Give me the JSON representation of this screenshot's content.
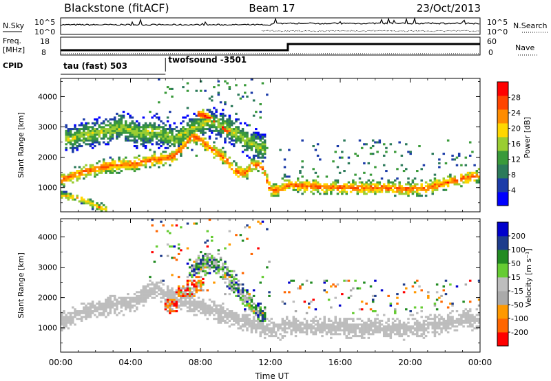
{
  "header": {
    "station": "Blackstone (fitACF)",
    "beam": "Beam 17",
    "date": "23/Oct/2013"
  },
  "summary_panels": {
    "nsky": {
      "label": "N.Sky",
      "right_label": "N.Search",
      "ticks_left": [
        "10^5",
        "10^0"
      ],
      "ticks_right": [
        "10^5",
        "10^0"
      ]
    },
    "freq": {
      "label_line1": "Freq.",
      "label_line2": "[MHz]",
      "ticks_left": [
        "18",
        "8"
      ],
      "right_label": "Nave",
      "ticks_right": [
        "60",
        "0"
      ]
    },
    "cpid": {
      "label": "CPID",
      "segments": [
        {
          "name": "tau (fast) 503",
          "start_hour": 0
        },
        {
          "name": "twofsound -3501",
          "start_hour": 6
        }
      ]
    }
  },
  "x_axis": {
    "label": "Time UT",
    "ticks": [
      "00:00",
      "04:00",
      "08:00",
      "12:00",
      "16:00",
      "20:00",
      "00:00"
    ],
    "range_hours": [
      0,
      24
    ]
  },
  "chart_data": [
    {
      "type": "heatmap",
      "quantity": "Power",
      "colorbar_label": "Power [dB]",
      "colorbar_ticks": [
        "28",
        "24",
        "20",
        "16",
        "12",
        "8",
        "4"
      ],
      "colorbar_range": [
        0,
        32
      ],
      "ylabel": "Slant Range [km]",
      "yticks": [
        "4000",
        "3000",
        "2000",
        "1000"
      ],
      "ylim": [
        200,
        4600
      ],
      "xlim": [
        0,
        24
      ],
      "colors": [
        "#0000ff",
        "#1c3ca8",
        "#2c7a5a",
        "#3a9a3a",
        "#9acd32",
        "#ffd700",
        "#ff8c00",
        "#ff4500",
        "#ff0000"
      ],
      "features": [
        {
          "name": "main band",
          "x": [
            0,
            1.5,
            3,
            4,
            5,
            6,
            6.5,
            7,
            7.5,
            8,
            8.5,
            9,
            9.5,
            10,
            10.5,
            11,
            11.5,
            12,
            12.5,
            13,
            14,
            16,
            18,
            20,
            21,
            22,
            23,
            24
          ],
          "y": [
            1250,
            1550,
            1750,
            1750,
            1900,
            1950,
            2050,
            2350,
            2700,
            2600,
            2300,
            2150,
            1900,
            1550,
            1450,
            1750,
            1700,
            950,
            900,
            1100,
            1050,
            1000,
            1000,
            950,
            1000,
            1150,
            1300,
            1400
          ],
          "width_km": 220,
          "power_db": 26
        },
        {
          "name": "upper echo",
          "x": [
            0.5,
            1.5,
            2.5,
            3.5,
            4.5,
            5.5,
            6.5,
            7.5,
            8.5,
            9.5,
            10.5,
            11.5
          ],
          "y": [
            2600,
            2750,
            2850,
            3000,
            2800,
            2850,
            2600,
            2950,
            3200,
            3000,
            2600,
            2300
          ],
          "width_km": 450,
          "power_db": 17
        },
        {
          "name": "near range",
          "x": [
            0,
            0.5,
            1,
            1.5,
            2,
            2.5
          ],
          "y": [
            750,
            700,
            650,
            550,
            400,
            300
          ],
          "width_km": 140,
          "power_db": 22
        },
        {
          "name": "high echo",
          "x": [
            8,
            8.5,
            9,
            9.5
          ],
          "y": [
            3400,
            3300,
            3100,
            2900
          ],
          "width_km": 250,
          "power_db": 28
        }
      ]
    },
    {
      "type": "heatmap",
      "quantity": "Velocity",
      "colorbar_label": "Velocity [m s⁻¹]",
      "colorbar_ticks": [
        "200",
        "100",
        "50",
        "15",
        "-15",
        "-50",
        "-100",
        "-200"
      ],
      "colorbar_range": [
        -250,
        250
      ],
      "ylabel": "Slant Range [km]",
      "yticks": [
        "4000",
        "3000",
        "2000",
        "1000"
      ],
      "ylim": [
        200,
        4600
      ],
      "xlim": [
        0,
        24
      ],
      "colors": [
        "#ff0000",
        "#ff6600",
        "#ff9900",
        "#aaaaaa",
        "#bdbdbd",
        "#66cc33",
        "#228b22",
        "#1e3c8c",
        "#0000cc"
      ],
      "features": [
        {
          "name": "ground scatter band",
          "x": [
            0,
            1.5,
            3,
            4,
            5,
            5.5,
            6,
            12,
            12.5,
            13,
            14,
            16,
            18,
            20,
            22,
            23,
            24
          ],
          "y": [
            1250,
            1550,
            1750,
            1800,
            2200,
            2300,
            2100,
            950,
            900,
            1100,
            1050,
            1000,
            1000,
            950,
            1150,
            1250,
            1300
          ],
          "width_km": 300,
          "velocity": 0
        },
        {
          "name": "negative patch",
          "x": [
            6.2,
            6.5,
            7,
            7.5,
            8
          ],
          "y": [
            1800,
            1900,
            2100,
            2300,
            2500
          ],
          "width_km": 350,
          "velocity": -120
        },
        {
          "name": "mixed upper echo",
          "x": [
            7.5,
            8,
            8.5,
            9,
            9.5,
            10,
            10.5,
            11,
            11.5
          ],
          "y": [
            2900,
            3100,
            3200,
            3000,
            2800,
            2400,
            2000,
            1700,
            1400
          ],
          "width_km": 350,
          "velocity": 60
        }
      ]
    }
  ]
}
